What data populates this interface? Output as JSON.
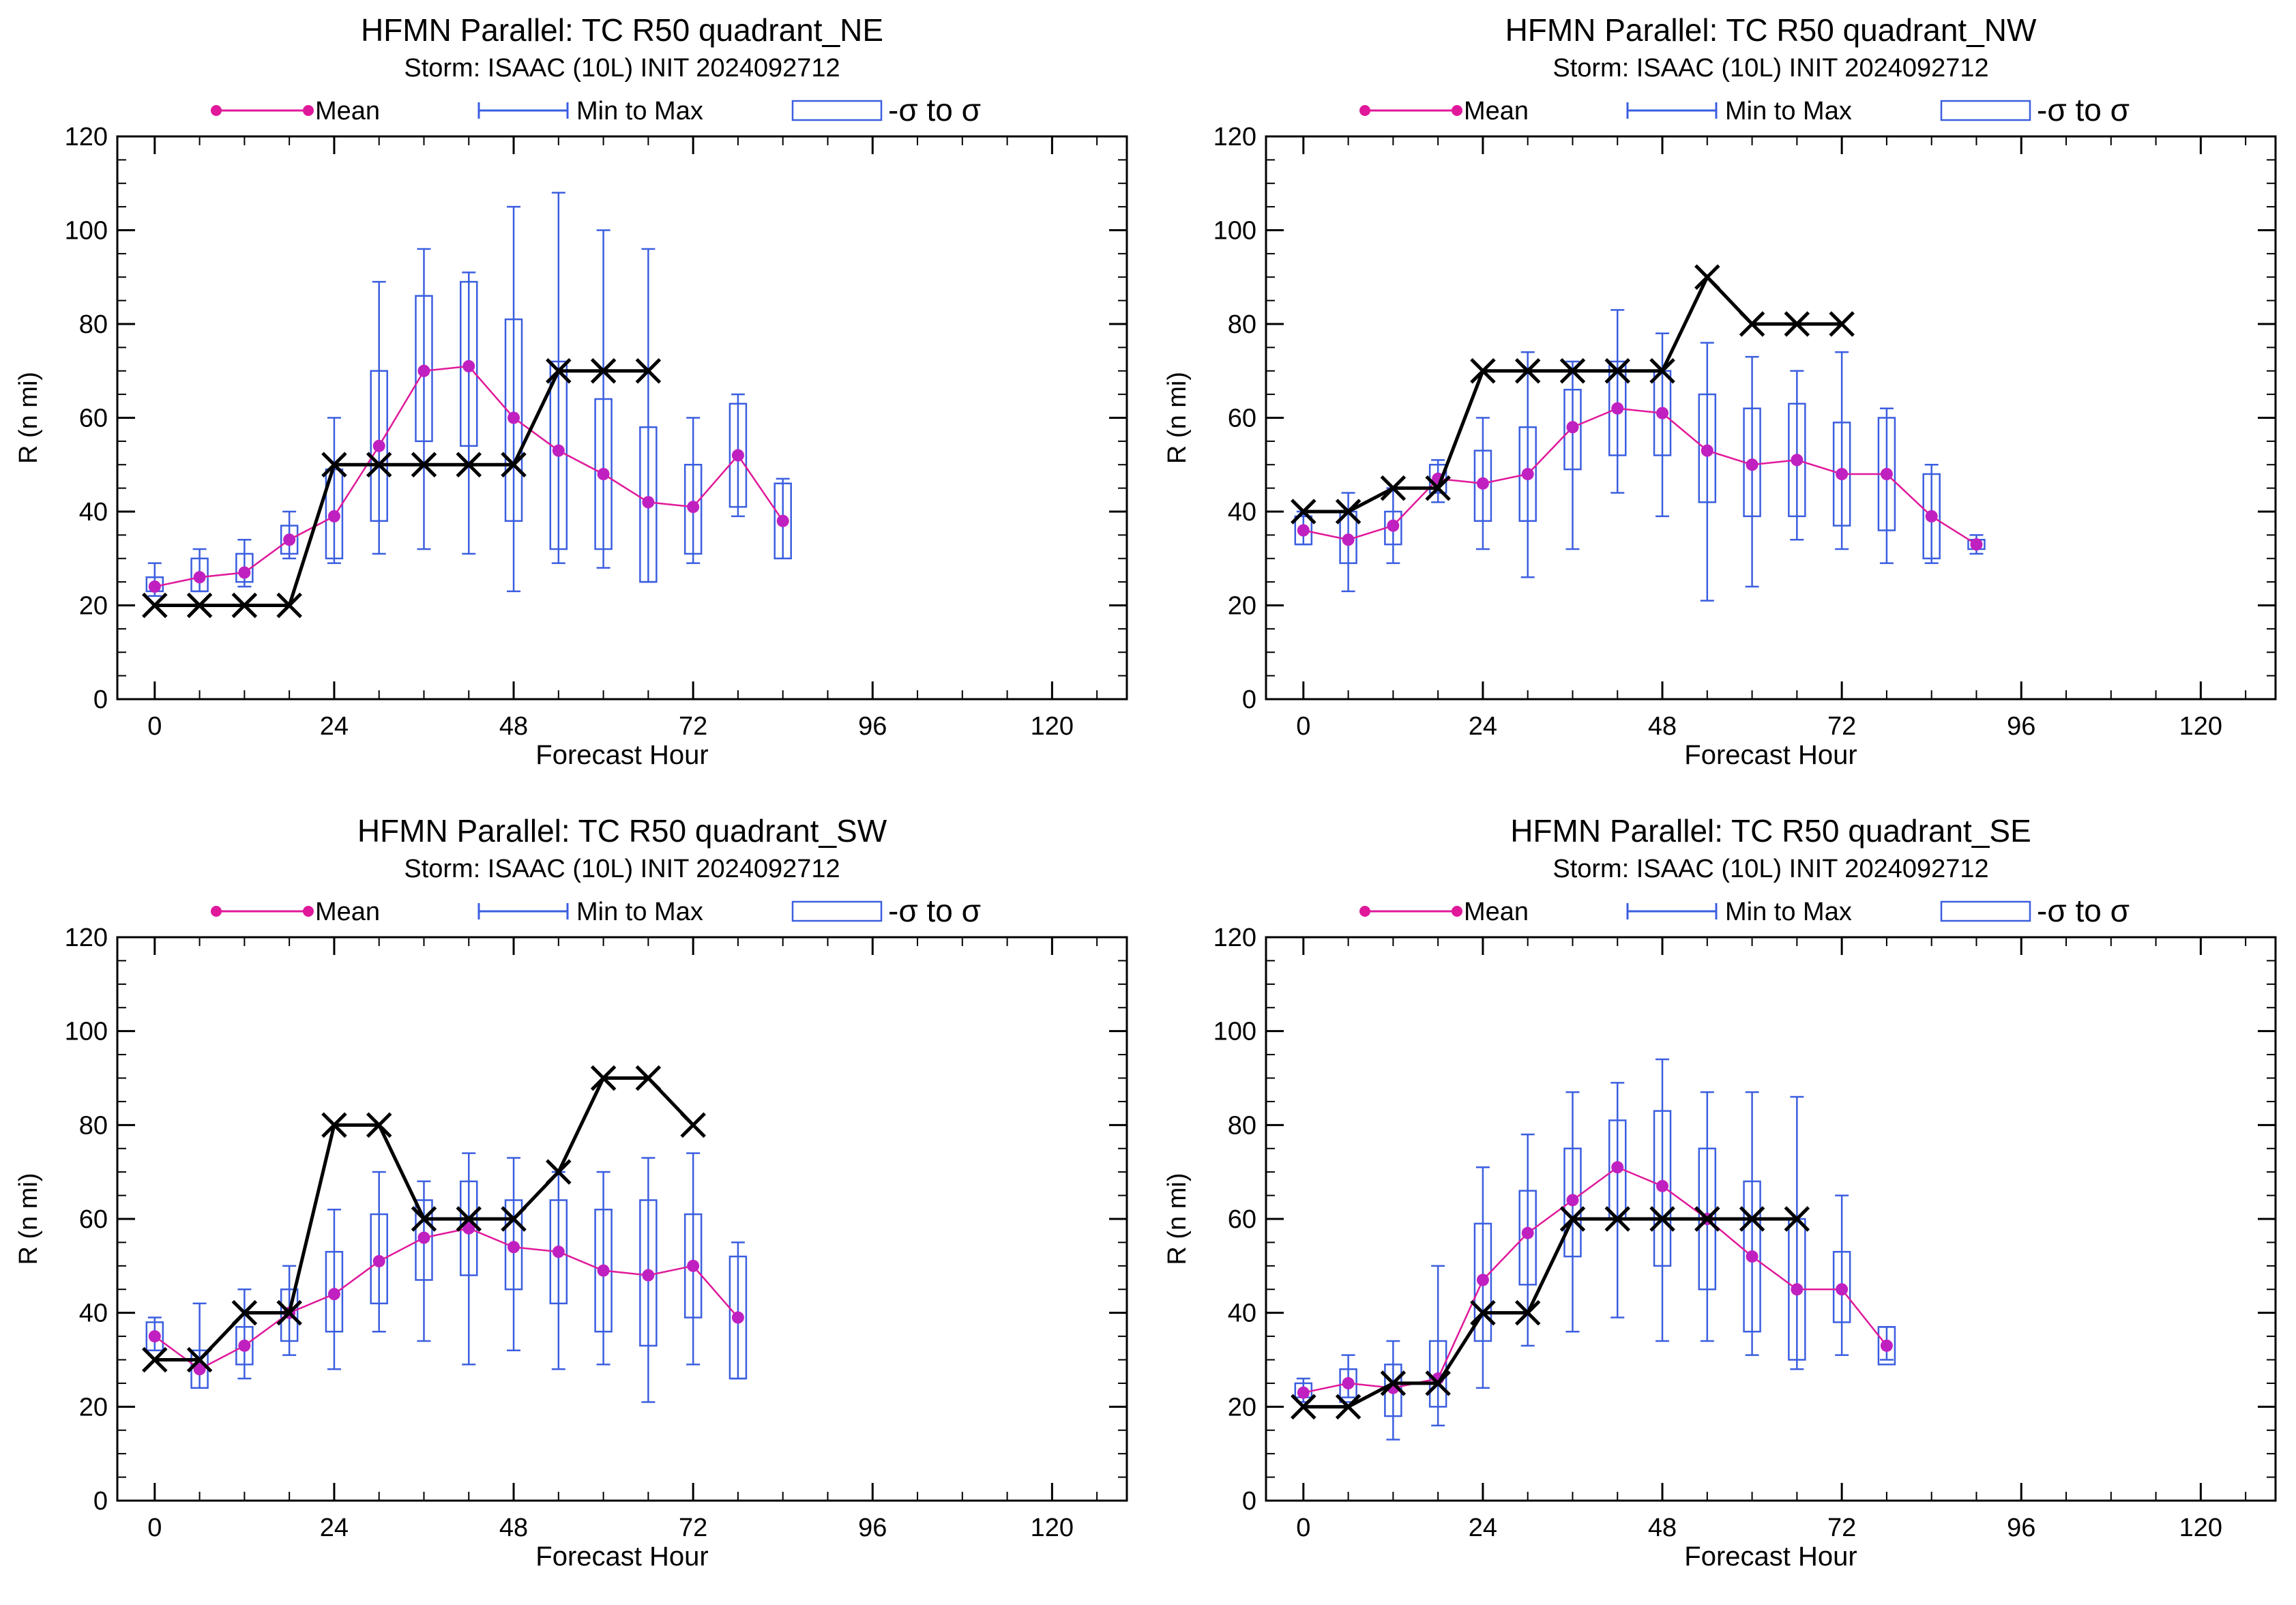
{
  "legend": {
    "mean": "Mean",
    "minmax": "Min to Max",
    "sigma": "-σ to σ"
  },
  "colors": {
    "mean": "#e0189a",
    "mean_dot": "#c020c0",
    "box": "#3b5ee0",
    "obs": "#000000"
  },
  "chart_data": [
    {
      "type": "box",
      "title": "HFMN Parallel: TC  R50 quadrant_NE",
      "subtitle": "Storm: ISAAC (10L) INIT 2024092712",
      "xlabel": "Forecast Hour",
      "ylabel": "R (n mi)",
      "xlim": [
        -5,
        130
      ],
      "ylim": [
        0,
        120
      ],
      "xticks": [
        0,
        24,
        48,
        72,
        96,
        120
      ],
      "yticks": [
        0,
        20,
        40,
        60,
        80,
        100,
        120
      ],
      "series": [
        {
          "name": "Mean",
          "x": [
            0,
            6,
            12,
            18,
            24,
            30,
            36,
            42,
            48,
            54,
            60,
            66,
            72,
            78,
            84
          ],
          "values": [
            24,
            26,
            27,
            34,
            39,
            54,
            70,
            71,
            60,
            53,
            48,
            42,
            41,
            52,
            38
          ]
        },
        {
          "name": "Min to Max",
          "x": [
            0,
            6,
            12,
            18,
            24,
            30,
            36,
            42,
            48,
            54,
            60,
            66,
            72,
            78,
            84
          ],
          "min": [
            22,
            23,
            24,
            30,
            29,
            31,
            32,
            31,
            23,
            29,
            28,
            25,
            29,
            39,
            30
          ],
          "max": [
            29,
            32,
            34,
            40,
            60,
            89,
            96,
            91,
            105,
            108,
            100,
            96,
            60,
            65,
            47
          ]
        },
        {
          "name": "-σ to σ",
          "x": [
            0,
            6,
            12,
            18,
            24,
            30,
            36,
            42,
            48,
            54,
            60,
            66,
            72,
            78,
            84
          ],
          "low": [
            23,
            23,
            25,
            31,
            30,
            38,
            55,
            54,
            38,
            32,
            32,
            25,
            31,
            41,
            30
          ],
          "high": [
            26,
            30,
            31,
            37,
            49,
            70,
            86,
            89,
            81,
            72,
            64,
            58,
            50,
            63,
            46
          ]
        },
        {
          "x": [
            0,
            6,
            12,
            18,
            24,
            30,
            36,
            42,
            48,
            54,
            60,
            66
          ],
          "values": [
            20,
            20,
            20,
            20,
            50,
            50,
            50,
            50,
            50,
            70,
            70,
            70
          ]
        }
      ]
    },
    {
      "type": "box",
      "title": "HFMN Parallel: TC  R50 quadrant_NW",
      "subtitle": "Storm: ISAAC (10L) INIT 2024092712",
      "xlabel": "Forecast Hour",
      "ylabel": "R (n mi)",
      "xlim": [
        -5,
        130
      ],
      "ylim": [
        0,
        120
      ],
      "xticks": [
        0,
        24,
        48,
        72,
        96,
        120
      ],
      "yticks": [
        0,
        20,
        40,
        60,
        80,
        100,
        120
      ],
      "series": [
        {
          "name": "Mean",
          "x": [
            0,
            6,
            12,
            18,
            24,
            30,
            36,
            42,
            48,
            54,
            60,
            66,
            72,
            78,
            84,
            90
          ],
          "values": [
            36,
            34,
            37,
            47,
            46,
            48,
            58,
            62,
            61,
            53,
            50,
            51,
            48,
            48,
            39,
            33
          ]
        },
        {
          "name": "Min to Max",
          "x": [
            0,
            6,
            12,
            18,
            24,
            30,
            36,
            42,
            48,
            54,
            60,
            66,
            72,
            78,
            84,
            90
          ],
          "min": [
            33,
            23,
            29,
            42,
            32,
            26,
            32,
            44,
            39,
            21,
            24,
            34,
            32,
            29,
            29,
            31
          ],
          "max": [
            40,
            44,
            45,
            51,
            60,
            74,
            72,
            83,
            78,
            76,
            73,
            70,
            74,
            62,
            50,
            35
          ]
        },
        {
          "name": "-σ to σ",
          "x": [
            0,
            6,
            12,
            18,
            24,
            30,
            36,
            42,
            48,
            54,
            60,
            66,
            72,
            78,
            84,
            90
          ],
          "low": [
            33,
            29,
            33,
            44,
            38,
            38,
            49,
            52,
            52,
            42,
            39,
            39,
            37,
            36,
            30,
            32
          ],
          "high": [
            39,
            40,
            40,
            50,
            53,
            58,
            66,
            72,
            70,
            65,
            62,
            63,
            59,
            60,
            48,
            34
          ]
        },
        {
          "x": [
            0,
            6,
            12,
            18,
            24,
            30,
            36,
            42,
            48,
            54,
            60,
            66,
            72
          ],
          "values": [
            40,
            40,
            45,
            45,
            70,
            70,
            70,
            70,
            70,
            90,
            80,
            80,
            80
          ]
        }
      ]
    },
    {
      "type": "box",
      "title": "HFMN Parallel: TC  R50 quadrant_SW",
      "subtitle": "Storm: ISAAC (10L) INIT 2024092712",
      "xlabel": "Forecast Hour",
      "ylabel": "R (n mi)",
      "xlim": [
        -5,
        130
      ],
      "ylim": [
        0,
        120
      ],
      "xticks": [
        0,
        24,
        48,
        72,
        96,
        120
      ],
      "yticks": [
        0,
        20,
        40,
        60,
        80,
        100,
        120
      ],
      "series": [
        {
          "name": "Mean",
          "x": [
            0,
            6,
            12,
            18,
            24,
            30,
            36,
            42,
            48,
            54,
            60,
            66,
            72,
            78
          ],
          "values": [
            35,
            28,
            33,
            40,
            44,
            51,
            56,
            58,
            54,
            53,
            49,
            48,
            50,
            39
          ]
        },
        {
          "name": "Min to Max",
          "x": [
            0,
            6,
            12,
            18,
            24,
            30,
            36,
            42,
            48,
            54,
            60,
            66,
            72,
            78
          ],
          "min": [
            32,
            24,
            26,
            31,
            28,
            36,
            34,
            29,
            32,
            28,
            29,
            21,
            29,
            26
          ],
          "max": [
            39,
            42,
            45,
            50,
            62,
            70,
            68,
            74,
            73,
            70,
            70,
            73,
            74,
            55
          ]
        },
        {
          "name": "-σ to σ",
          "x": [
            0,
            6,
            12,
            18,
            24,
            30,
            36,
            42,
            48,
            54,
            60,
            66,
            72,
            78
          ],
          "low": [
            32,
            24,
            29,
            34,
            36,
            42,
            47,
            48,
            45,
            42,
            36,
            33,
            39,
            26
          ],
          "high": [
            38,
            32,
            37,
            45,
            53,
            61,
            64,
            68,
            64,
            64,
            62,
            64,
            61,
            52
          ]
        },
        {
          "x": [
            0,
            6,
            12,
            18,
            24,
            30,
            36,
            42,
            48,
            54,
            60,
            66,
            72
          ],
          "values": [
            30,
            30,
            40,
            40,
            80,
            80,
            60,
            60,
            60,
            70,
            90,
            90,
            80
          ]
        }
      ]
    },
    {
      "type": "box",
      "title": "HFMN Parallel: TC  R50 quadrant_SE",
      "subtitle": "Storm: ISAAC (10L) INIT 2024092712",
      "xlabel": "Forecast Hour",
      "ylabel": "R (n mi)",
      "xlim": [
        -5,
        130
      ],
      "ylim": [
        0,
        120
      ],
      "xticks": [
        0,
        24,
        48,
        72,
        96,
        120
      ],
      "yticks": [
        0,
        20,
        40,
        60,
        80,
        100,
        120
      ],
      "series": [
        {
          "name": "Mean",
          "x": [
            0,
            6,
            12,
            18,
            24,
            30,
            36,
            42,
            48,
            54,
            60,
            66,
            72,
            78
          ],
          "values": [
            23,
            25,
            24,
            26,
            47,
            57,
            64,
            71,
            67,
            60,
            52,
            45,
            45,
            33
          ]
        },
        {
          "name": "Min to Max",
          "x": [
            0,
            6,
            12,
            18,
            24,
            30,
            36,
            42,
            48,
            54,
            60,
            66,
            72,
            78
          ],
          "min": [
            21,
            22,
            13,
            16,
            24,
            33,
            36,
            39,
            34,
            34,
            31,
            28,
            31,
            30
          ],
          "max": [
            26,
            31,
            34,
            50,
            71,
            78,
            87,
            89,
            94,
            87,
            87,
            86,
            65,
            37
          ]
        },
        {
          "name": "-σ to σ",
          "x": [
            0,
            6,
            12,
            18,
            24,
            30,
            36,
            42,
            48,
            54,
            60,
            66,
            72,
            78
          ],
          "low": [
            22,
            21,
            18,
            20,
            34,
            46,
            52,
            60,
            50,
            45,
            36,
            30,
            38,
            29
          ],
          "high": [
            25,
            28,
            29,
            34,
            59,
            66,
            75,
            81,
            83,
            75,
            68,
            60,
            53,
            37
          ]
        },
        {
          "x": [
            0,
            6,
            12,
            18,
            24,
            30,
            36,
            42,
            48,
            54,
            60,
            66
          ],
          "values": [
            20,
            20,
            25,
            25,
            40,
            40,
            60,
            60,
            60,
            60,
            60,
            60
          ]
        }
      ]
    }
  ]
}
